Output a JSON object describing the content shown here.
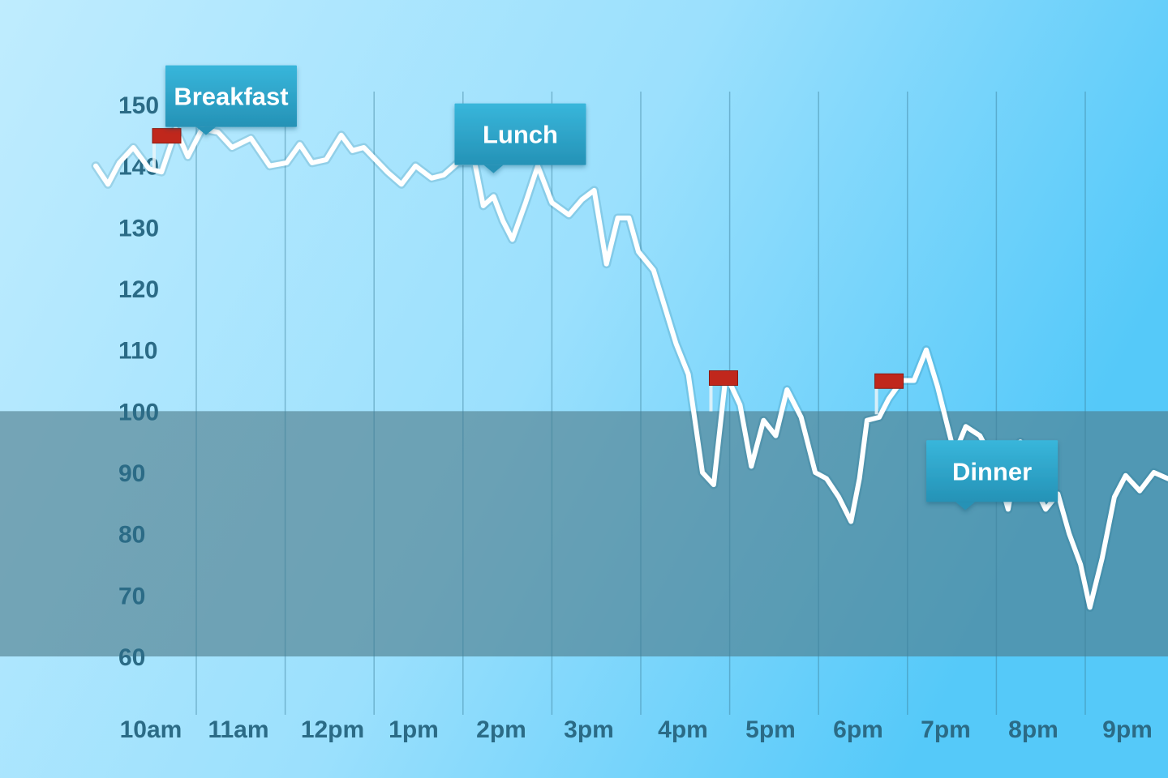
{
  "chart_data": {
    "type": "line",
    "title": "",
    "xlabel": "",
    "ylabel": "",
    "ylim": [
      60,
      150
    ],
    "yticks": [
      150,
      140,
      130,
      120,
      110,
      100,
      90,
      80,
      70,
      60
    ],
    "x_ticks": [
      "10am",
      "11am",
      "12pm",
      "1pm",
      "2pm",
      "3pm",
      "4pm",
      "5pm",
      "6pm",
      "7pm",
      "8pm",
      "9pm"
    ],
    "x_range_hours": [
      8.15,
      19.55
    ],
    "grid": true,
    "target_band": [
      60,
      100
    ],
    "series": [
      {
        "values": [
          [
            8.15,
            140
          ],
          [
            8.28,
            137
          ],
          [
            8.4,
            140.5
          ],
          [
            8.55,
            143
          ],
          [
            8.72,
            139.5
          ],
          [
            8.85,
            139
          ],
          [
            8.95,
            143.5
          ],
          [
            9.0,
            146
          ],
          [
            9.13,
            141.5
          ],
          [
            9.28,
            146
          ],
          [
            9.45,
            145.5
          ],
          [
            9.6,
            143
          ],
          [
            9.8,
            144.5
          ],
          [
            10.0,
            140
          ],
          [
            10.18,
            140.5
          ],
          [
            10.32,
            143.5
          ],
          [
            10.45,
            140.5
          ],
          [
            10.6,
            141
          ],
          [
            10.76,
            145
          ],
          [
            10.88,
            142.5
          ],
          [
            11.0,
            143
          ],
          [
            11.25,
            139
          ],
          [
            11.4,
            137
          ],
          [
            11.55,
            140
          ],
          [
            11.72,
            138
          ],
          [
            11.85,
            138.5
          ],
          [
            12.0,
            140.5
          ],
          [
            12.18,
            140.5
          ],
          [
            12.27,
            133.5
          ],
          [
            12.38,
            135
          ],
          [
            12.48,
            131
          ],
          [
            12.58,
            128
          ],
          [
            12.72,
            134
          ],
          [
            12.85,
            140
          ],
          [
            13.0,
            134
          ],
          [
            13.18,
            132
          ],
          [
            13.32,
            134.5
          ],
          [
            13.45,
            136
          ],
          [
            13.58,
            124
          ],
          [
            13.7,
            131.5
          ],
          [
            13.82,
            131.5
          ],
          [
            13.92,
            126
          ],
          [
            14.08,
            123
          ],
          [
            14.32,
            111
          ],
          [
            14.45,
            106
          ],
          [
            14.6,
            90
          ],
          [
            14.72,
            88
          ],
          [
            14.85,
            106
          ],
          [
            15.0,
            101
          ],
          [
            15.12,
            91
          ],
          [
            15.25,
            98.5
          ],
          [
            15.38,
            96
          ],
          [
            15.5,
            103.5
          ],
          [
            15.65,
            99
          ],
          [
            15.8,
            90
          ],
          [
            15.92,
            89
          ],
          [
            16.05,
            86
          ],
          [
            16.18,
            82
          ],
          [
            16.27,
            89
          ],
          [
            16.35,
            98.5
          ],
          [
            16.48,
            99
          ],
          [
            16.58,
            102
          ],
          [
            16.72,
            105
          ],
          [
            16.85,
            105
          ],
          [
            16.98,
            110
          ],
          [
            17.1,
            104
          ],
          [
            17.28,
            93
          ],
          [
            17.4,
            97.5
          ],
          [
            17.55,
            96
          ],
          [
            17.72,
            91
          ],
          [
            17.85,
            84
          ],
          [
            17.98,
            95
          ],
          [
            18.12,
            88
          ],
          [
            18.25,
            84
          ],
          [
            18.38,
            86.5
          ],
          [
            18.5,
            80
          ],
          [
            18.62,
            75
          ],
          [
            18.72,
            68
          ],
          [
            18.85,
            76
          ],
          [
            18.98,
            86
          ],
          [
            19.1,
            89.5
          ],
          [
            19.25,
            87
          ],
          [
            19.4,
            90
          ],
          [
            19.55,
            89
          ]
        ]
      }
    ],
    "annotations": [
      {
        "label": "Breakfast",
        "hour": 8.9,
        "value": 144.5,
        "color": "#c0271c"
      },
      {
        "label": "Lunch",
        "hour": 12.0,
        "value": 140,
        "color": "#c0271c"
      },
      {
        "label": "",
        "hour": 14.82,
        "value": 105,
        "color": "#c0271c"
      },
      {
        "label": "",
        "hour": 16.58,
        "value": 104.5,
        "color": "#c0271c"
      },
      {
        "label": "Dinner",
        "hour": 17.05,
        "value": 86,
        "color": "#c0271c"
      }
    ],
    "colors": {
      "background_light": "#b6e9fe",
      "background_dark": "#55caf9",
      "line": "#ffffff",
      "band": "#4d7b89",
      "ticks": "#2b6b86",
      "callout": "#2aa5c9"
    }
  }
}
